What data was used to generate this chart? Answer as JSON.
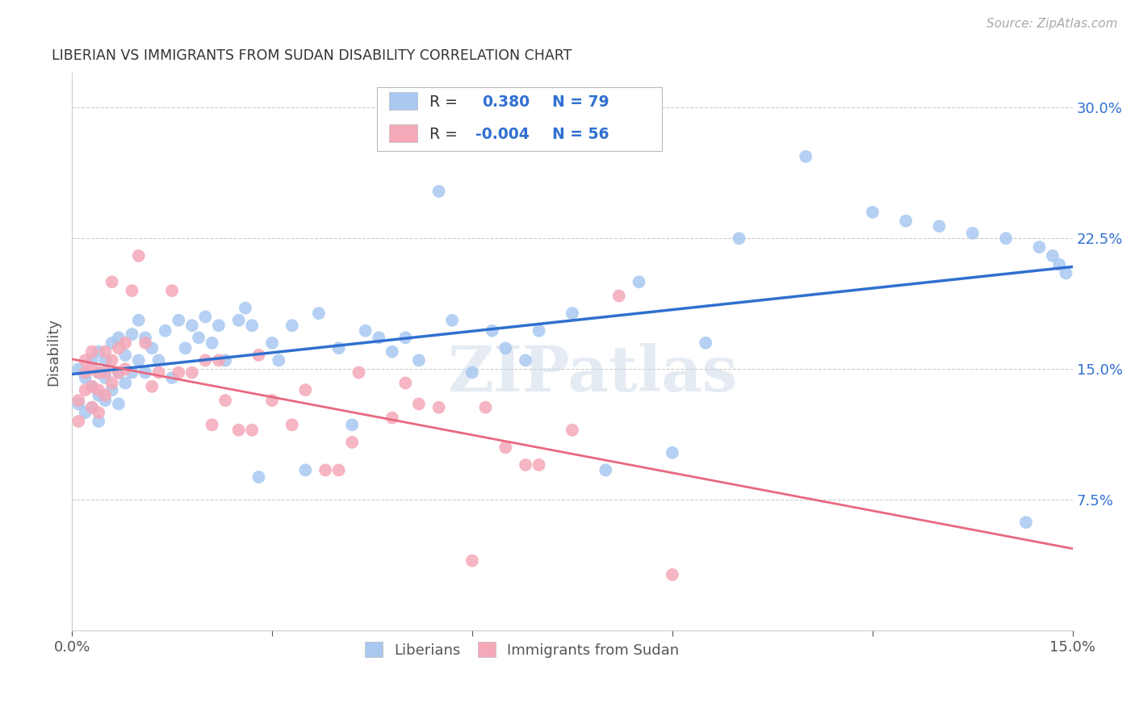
{
  "title": "LIBERIAN VS IMMIGRANTS FROM SUDAN DISABILITY CORRELATION CHART",
  "source": "Source: ZipAtlas.com",
  "ylabel": "Disability",
  "xlim": [
    0.0,
    0.15
  ],
  "ylim": [
    0.0,
    0.32
  ],
  "ytick_positions": [
    0.075,
    0.15,
    0.225,
    0.3
  ],
  "ytick_labels": [
    "7.5%",
    "15.0%",
    "22.5%",
    "30.0%"
  ],
  "blue_R": 0.38,
  "blue_N": 79,
  "pink_R": -0.004,
  "pink_N": 56,
  "blue_color": "#a8c8f0",
  "pink_color": "#f4a8b8",
  "blue_line_color": "#3070d0",
  "pink_line_color": "#e86880",
  "legend_text_color": "#3070d0",
  "watermark": "ZIPatlas",
  "blue_x": [
    0.001,
    0.001,
    0.002,
    0.002,
    0.003,
    0.003,
    0.003,
    0.004,
    0.004,
    0.004,
    0.004,
    0.005,
    0.005,
    0.005,
    0.006,
    0.006,
    0.007,
    0.007,
    0.007,
    0.008,
    0.008,
    0.009,
    0.009,
    0.01,
    0.01,
    0.011,
    0.011,
    0.012,
    0.013,
    0.014,
    0.015,
    0.016,
    0.017,
    0.018,
    0.019,
    0.02,
    0.021,
    0.022,
    0.023,
    0.025,
    0.026,
    0.027,
    0.028,
    0.03,
    0.031,
    0.033,
    0.035,
    0.037,
    0.04,
    0.042,
    0.044,
    0.046,
    0.048,
    0.05,
    0.052,
    0.055,
    0.057,
    0.06,
    0.063,
    0.065,
    0.068,
    0.07,
    0.075,
    0.08,
    0.085,
    0.09,
    0.095,
    0.1,
    0.11,
    0.12,
    0.125,
    0.13,
    0.135,
    0.14,
    0.143,
    0.145,
    0.147,
    0.148,
    0.149
  ],
  "blue_y": [
    0.13,
    0.15,
    0.125,
    0.145,
    0.128,
    0.14,
    0.155,
    0.12,
    0.135,
    0.148,
    0.16,
    0.132,
    0.145,
    0.155,
    0.138,
    0.165,
    0.13,
    0.148,
    0.168,
    0.142,
    0.158,
    0.148,
    0.17,
    0.155,
    0.178,
    0.148,
    0.168,
    0.162,
    0.155,
    0.172,
    0.145,
    0.178,
    0.162,
    0.175,
    0.168,
    0.18,
    0.165,
    0.175,
    0.155,
    0.178,
    0.185,
    0.175,
    0.088,
    0.165,
    0.155,
    0.175,
    0.092,
    0.182,
    0.162,
    0.118,
    0.172,
    0.168,
    0.16,
    0.168,
    0.155,
    0.252,
    0.178,
    0.148,
    0.172,
    0.162,
    0.155,
    0.172,
    0.182,
    0.092,
    0.2,
    0.102,
    0.165,
    0.225,
    0.272,
    0.24,
    0.235,
    0.232,
    0.228,
    0.225,
    0.062,
    0.22,
    0.215,
    0.21,
    0.205
  ],
  "pink_x": [
    0.001,
    0.001,
    0.002,
    0.002,
    0.002,
    0.003,
    0.003,
    0.003,
    0.003,
    0.004,
    0.004,
    0.004,
    0.005,
    0.005,
    0.005,
    0.006,
    0.006,
    0.006,
    0.007,
    0.007,
    0.008,
    0.008,
    0.009,
    0.01,
    0.011,
    0.012,
    0.013,
    0.015,
    0.016,
    0.018,
    0.02,
    0.021,
    0.022,
    0.023,
    0.025,
    0.027,
    0.028,
    0.03,
    0.033,
    0.035,
    0.038,
    0.04,
    0.042,
    0.043,
    0.048,
    0.05,
    0.052,
    0.055,
    0.06,
    0.062,
    0.065,
    0.068,
    0.07,
    0.075,
    0.082,
    0.09
  ],
  "pink_y": [
    0.12,
    0.132,
    0.138,
    0.148,
    0.155,
    0.128,
    0.14,
    0.15,
    0.16,
    0.125,
    0.138,
    0.148,
    0.135,
    0.148,
    0.16,
    0.142,
    0.155,
    0.2,
    0.148,
    0.162,
    0.15,
    0.165,
    0.195,
    0.215,
    0.165,
    0.14,
    0.148,
    0.195,
    0.148,
    0.148,
    0.155,
    0.118,
    0.155,
    0.132,
    0.115,
    0.115,
    0.158,
    0.132,
    0.118,
    0.138,
    0.092,
    0.092,
    0.108,
    0.148,
    0.122,
    0.142,
    0.13,
    0.128,
    0.04,
    0.128,
    0.105,
    0.095,
    0.095,
    0.115,
    0.192,
    0.032
  ]
}
